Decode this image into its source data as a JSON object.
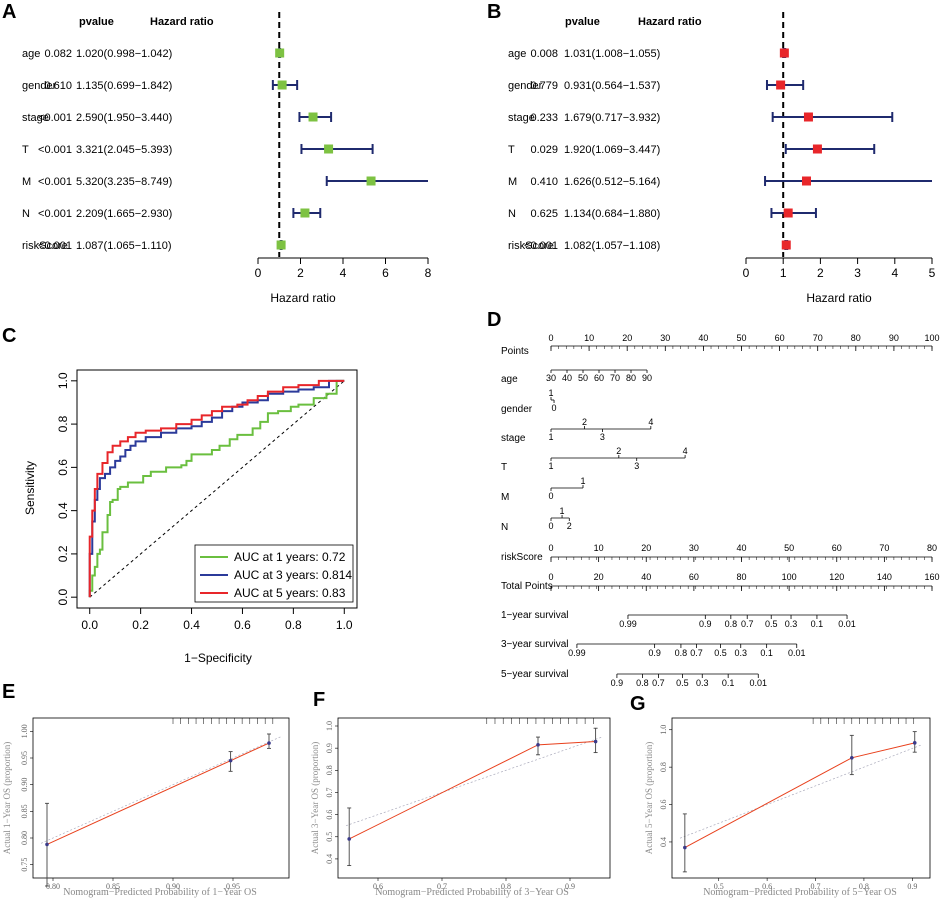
{
  "panels": {
    "A": "A",
    "B": "B",
    "C": "C",
    "D": "D",
    "E": "E",
    "F": "F",
    "G": "G"
  },
  "chart_data": [
    {
      "panel": "A",
      "type": "forest",
      "header_pvalue": "pvalue",
      "header_hr": "Hazard ratio",
      "xlabel": "Hazard ratio",
      "xlim": [
        0,
        8
      ],
      "xticks": [
        "0",
        "2",
        "4",
        "6",
        "8"
      ],
      "reference_line": 1,
      "marker_color": "#7dc242",
      "rows": [
        {
          "name": "age",
          "pvalue": "0.082",
          "label": "1.020(0.998−1.042)",
          "hr": 1.02,
          "lo": 0.998,
          "hi": 1.042
        },
        {
          "name": "gender",
          "pvalue": "0.610",
          "label": "1.135(0.699−1.842)",
          "hr": 1.135,
          "lo": 0.699,
          "hi": 1.842
        },
        {
          "name": "stage",
          "pvalue": "<0.001",
          "label": "2.590(1.950−3.440)",
          "hr": 2.59,
          "lo": 1.95,
          "hi": 3.44
        },
        {
          "name": "T",
          "pvalue": "<0.001",
          "label": "3.321(2.045−5.393)",
          "hr": 3.321,
          "lo": 2.045,
          "hi": 5.393
        },
        {
          "name": "M",
          "pvalue": "<0.001",
          "label": "5.320(3.235−8.749)",
          "hr": 5.32,
          "lo": 3.235,
          "hi": 8.749
        },
        {
          "name": "N",
          "pvalue": "<0.001",
          "label": "2.209(1.665−2.930)",
          "hr": 2.209,
          "lo": 1.665,
          "hi": 2.93
        },
        {
          "name": "riskScore",
          "pvalue": "<0.001",
          "label": "1.087(1.065−1.110)",
          "hr": 1.087,
          "lo": 1.065,
          "hi": 1.11
        }
      ]
    },
    {
      "panel": "B",
      "type": "forest",
      "header_pvalue": "pvalue",
      "header_hr": "Hazard ratio",
      "xlabel": "Hazard ratio",
      "xlim": [
        0,
        5
      ],
      "xticks": [
        "0",
        "1",
        "2",
        "3",
        "4",
        "5"
      ],
      "reference_line": 1,
      "marker_color": "#e8262a",
      "rows": [
        {
          "name": "age",
          "pvalue": "0.008",
          "label": "1.031(1.008−1.055)",
          "hr": 1.031,
          "lo": 1.008,
          "hi": 1.055
        },
        {
          "name": "gender",
          "pvalue": "0.779",
          "label": "0.931(0.564−1.537)",
          "hr": 0.931,
          "lo": 0.564,
          "hi": 1.537
        },
        {
          "name": "stage",
          "pvalue": "0.233",
          "label": "1.679(0.717−3.932)",
          "hr": 1.679,
          "lo": 0.717,
          "hi": 3.932
        },
        {
          "name": "T",
          "pvalue": "0.029",
          "label": "1.920(1.069−3.447)",
          "hr": 1.92,
          "lo": 1.069,
          "hi": 3.447
        },
        {
          "name": "M",
          "pvalue": "0.410",
          "label": "1.626(0.512−5.164)",
          "hr": 1.626,
          "lo": 0.512,
          "hi": 5.164
        },
        {
          "name": "N",
          "pvalue": "0.625",
          "label": "1.134(0.684−1.880)",
          "hr": 1.134,
          "lo": 0.684,
          "hi": 1.88
        },
        {
          "name": "riskScore",
          "pvalue": "<0.001",
          "label": "1.082(1.057−1.108)",
          "hr": 1.082,
          "lo": 1.057,
          "hi": 1.108
        }
      ]
    },
    {
      "panel": "C",
      "type": "line",
      "subtype": "roc",
      "xlabel": "1−Specificity",
      "ylabel": "Sensitivity",
      "xlim": [
        -0.05,
        1.05
      ],
      "ylim": [
        -0.05,
        1.05
      ],
      "xticks": [
        "0.0",
        "0.2",
        "0.4",
        "0.6",
        "0.8",
        "1.0"
      ],
      "yticks": [
        "0.0",
        "0.2",
        "0.4",
        "0.6",
        "0.8",
        "1.0"
      ],
      "legend_position": "bottom-right",
      "series": [
        {
          "name": "AUC at 1 years: 0.72",
          "color": "#6abf3f",
          "points": [
            [
              0,
              0
            ],
            [
              0.01,
              0.03
            ],
            [
              0.02,
              0.1
            ],
            [
              0.03,
              0.14
            ],
            [
              0.04,
              0.2
            ],
            [
              0.05,
              0.22
            ],
            [
              0.07,
              0.3
            ],
            [
              0.08,
              0.38
            ],
            [
              0.09,
              0.44
            ],
            [
              0.11,
              0.45
            ],
            [
              0.12,
              0.5
            ],
            [
              0.15,
              0.51
            ],
            [
              0.18,
              0.53
            ],
            [
              0.21,
              0.53
            ],
            [
              0.24,
              0.56
            ],
            [
              0.3,
              0.58
            ],
            [
              0.36,
              0.6
            ],
            [
              0.38,
              0.61
            ],
            [
              0.4,
              0.63
            ],
            [
              0.44,
              0.66
            ],
            [
              0.48,
              0.66
            ],
            [
              0.51,
              0.68
            ],
            [
              0.55,
              0.7
            ],
            [
              0.58,
              0.73
            ],
            [
              0.61,
              0.75
            ],
            [
              0.64,
              0.75
            ],
            [
              0.67,
              0.78
            ],
            [
              0.7,
              0.81
            ],
            [
              0.74,
              0.85
            ],
            [
              0.79,
              0.86
            ],
            [
              0.82,
              0.88
            ],
            [
              0.88,
              0.89
            ],
            [
              0.93,
              0.92
            ],
            [
              0.97,
              0.94
            ],
            [
              1,
              1
            ]
          ]
        },
        {
          "name": "AUC at 3 years: 0.814",
          "color": "#2b3a9a",
          "points": [
            [
              0,
              0
            ],
            [
              0.01,
              0.2
            ],
            [
              0.02,
              0.35
            ],
            [
              0.03,
              0.45
            ],
            [
              0.04,
              0.5
            ],
            [
              0.06,
              0.55
            ],
            [
              0.08,
              0.57
            ],
            [
              0.1,
              0.6
            ],
            [
              0.12,
              0.63
            ],
            [
              0.14,
              0.65
            ],
            [
              0.16,
              0.68
            ],
            [
              0.18,
              0.7
            ],
            [
              0.22,
              0.72
            ],
            [
              0.28,
              0.74
            ],
            [
              0.34,
              0.76
            ],
            [
              0.4,
              0.78
            ],
            [
              0.44,
              0.79
            ],
            [
              0.48,
              0.81
            ],
            [
              0.52,
              0.83
            ],
            [
              0.56,
              0.86
            ],
            [
              0.6,
              0.88
            ],
            [
              0.66,
              0.9
            ],
            [
              0.7,
              0.91
            ],
            [
              0.76,
              0.94
            ],
            [
              0.82,
              0.95
            ],
            [
              0.88,
              0.96
            ],
            [
              0.94,
              0.97
            ],
            [
              1,
              1
            ]
          ]
        },
        {
          "name": "AUC at 5 years: 0.83",
          "color": "#e8262a",
          "points": [
            [
              0,
              0
            ],
            [
              0.01,
              0.28
            ],
            [
              0.02,
              0.4
            ],
            [
              0.03,
              0.5
            ],
            [
              0.05,
              0.57
            ],
            [
              0.07,
              0.62
            ],
            [
              0.09,
              0.67
            ],
            [
              0.12,
              0.7
            ],
            [
              0.15,
              0.72
            ],
            [
              0.18,
              0.74
            ],
            [
              0.22,
              0.76
            ],
            [
              0.28,
              0.77
            ],
            [
              0.34,
              0.78
            ],
            [
              0.4,
              0.8
            ],
            [
              0.44,
              0.82
            ],
            [
              0.48,
              0.84
            ],
            [
              0.52,
              0.86
            ],
            [
              0.58,
              0.88
            ],
            [
              0.62,
              0.89
            ],
            [
              0.66,
              0.91
            ],
            [
              0.7,
              0.93
            ],
            [
              0.76,
              0.95
            ],
            [
              0.82,
              0.97
            ],
            [
              0.9,
              0.98
            ],
            [
              1,
              1
            ]
          ]
        }
      ]
    },
    {
      "panel": "D",
      "type": "nomogram",
      "rows": [
        {
          "name": "Points",
          "labels": [
            "0",
            "10",
            "20",
            "30",
            "40",
            "50",
            "60",
            "70",
            "80",
            "90",
            "100"
          ],
          "positions": [
            0,
            10,
            20,
            30,
            40,
            50,
            60,
            70,
            80,
            90,
            100
          ]
        },
        {
          "name": "age",
          "labels": [
            "30",
            "40",
            "50",
            "60",
            "70",
            "80",
            "90"
          ],
          "positions": [
            0,
            4.2,
            8.4,
            12.6,
            16.8,
            21,
            25.2
          ]
        },
        {
          "name": "gender",
          "labels": [
            "0",
            "1"
          ],
          "positions": [
            0.8,
            0
          ]
        },
        {
          "name": "stage",
          "labels": [
            "1",
            "2",
            "3",
            "4"
          ],
          "positions": [
            0,
            8.8,
            13.5,
            26.2
          ]
        },
        {
          "name": "T",
          "labels": [
            "1",
            "2",
            "3",
            "4"
          ],
          "positions": [
            0,
            17.8,
            22.5,
            35.2
          ]
        },
        {
          "name": "M",
          "labels": [
            "0",
            "1"
          ],
          "positions": [
            0,
            8.4
          ]
        },
        {
          "name": "N",
          "labels": [
            "0",
            "1",
            "2"
          ],
          "positions": [
            0,
            2.9,
            4.8
          ]
        },
        {
          "name": "riskScore",
          "labels": [
            "0",
            "10",
            "20",
            "30",
            "40",
            "50",
            "60",
            "70",
            "80"
          ],
          "positions": [
            0,
            12.5,
            25,
            37.5,
            50,
            62.5,
            75,
            87.5,
            100
          ]
        },
        {
          "name": "Total Points",
          "labels": [
            "0",
            "20",
            "40",
            "60",
            "80",
            "100",
            "120",
            "140",
            "160"
          ],
          "positions": [
            0,
            12.5,
            25,
            37.5,
            50,
            62.5,
            75,
            87.5,
            100
          ]
        },
        {
          "name": "1−year survival",
          "labels": [
            "0.99",
            "0.9",
            "0.8",
            "0.7",
            "0.5",
            "0.3",
            "0.1",
            "0.01"
          ],
          "positions": [
            20.2,
            40.5,
            47.2,
            51.5,
            57.8,
            63,
            69.8,
            77.7
          ]
        },
        {
          "name": "3−year survival",
          "labels": [
            "0.99",
            "0.9",
            "0.8",
            "0.7",
            "0.5",
            "0.3",
            "0.1",
            "0.01"
          ],
          "positions": [
            6.8,
            27.2,
            34.1,
            38.2,
            44.5,
            49.8,
            56.6,
            64.5
          ]
        },
        {
          "name": "5−year survival",
          "labels": [
            "0.9",
            "0.8",
            "0.7",
            "0.5",
            "0.3",
            "0.1",
            "0.01"
          ],
          "positions": [
            17.3,
            24,
            28.2,
            34.5,
            39.7,
            46.5,
            54.4
          ]
        }
      ]
    },
    {
      "panel": "E",
      "type": "line",
      "subtype": "calibration",
      "xlabel": "Nomogram−Predicted Probability of 1−Year OS",
      "ylabel": "Actual 1−Year OS (proportion)",
      "xlim": [
        0.79,
        0.99
      ],
      "ylim": [
        0.74,
        1.01
      ],
      "xticks": [
        "0.80",
        "0.85",
        "0.90",
        "0.95"
      ],
      "yticks": [
        "0.75",
        "0.80",
        "0.85",
        "0.90",
        "0.95",
        "1.00"
      ],
      "points": [
        [
          0.795,
          0.788
        ],
        [
          0.948,
          0.945
        ],
        [
          0.98,
          0.978
        ]
      ],
      "error_bars": [
        [
          0.71,
          0.865
        ],
        [
          0.925,
          0.962
        ],
        [
          0.968,
          0.995
        ]
      ]
    },
    {
      "panel": "F",
      "type": "line",
      "subtype": "calibration",
      "xlabel": "Nomogram−Predicted Probability of 3−Year OS",
      "ylabel": "Actual 3−Year OS (proportion)",
      "xlim": [
        0.55,
        0.95
      ],
      "ylim": [
        0.35,
        1.0
      ],
      "xticks": [
        "0.6",
        "0.7",
        "0.8",
        "0.9"
      ],
      "yticks": [
        "0.4",
        "0.5",
        "0.6",
        "0.7",
        "0.8",
        "0.9",
        "1.0"
      ],
      "points": [
        [
          0.555,
          0.49
        ],
        [
          0.85,
          0.915
        ],
        [
          0.94,
          0.93
        ]
      ],
      "error_bars": [
        [
          0.37,
          0.63
        ],
        [
          0.87,
          0.95
        ],
        [
          0.88,
          0.99
        ]
      ]
    },
    {
      "panel": "G",
      "type": "line",
      "subtype": "calibration",
      "xlabel": "Nomogram−Predicted Probability of 5−Year OS",
      "ylabel": "Actual 5−Year OS (proportion)",
      "xlim": [
        0.42,
        0.92
      ],
      "ylim": [
        0.25,
        1.02
      ],
      "xticks": [
        "0.5",
        "0.6",
        "0.7",
        "0.8",
        "0.9"
      ],
      "yticks": [
        "0.4",
        "0.6",
        "0.8",
        "1.0"
      ],
      "points": [
        [
          0.43,
          0.37
        ],
        [
          0.775,
          0.85
        ],
        [
          0.905,
          0.93
        ]
      ],
      "error_bars": [
        [
          0.24,
          0.55
        ],
        [
          0.76,
          0.97
        ],
        [
          0.88,
          0.99
        ]
      ]
    }
  ]
}
